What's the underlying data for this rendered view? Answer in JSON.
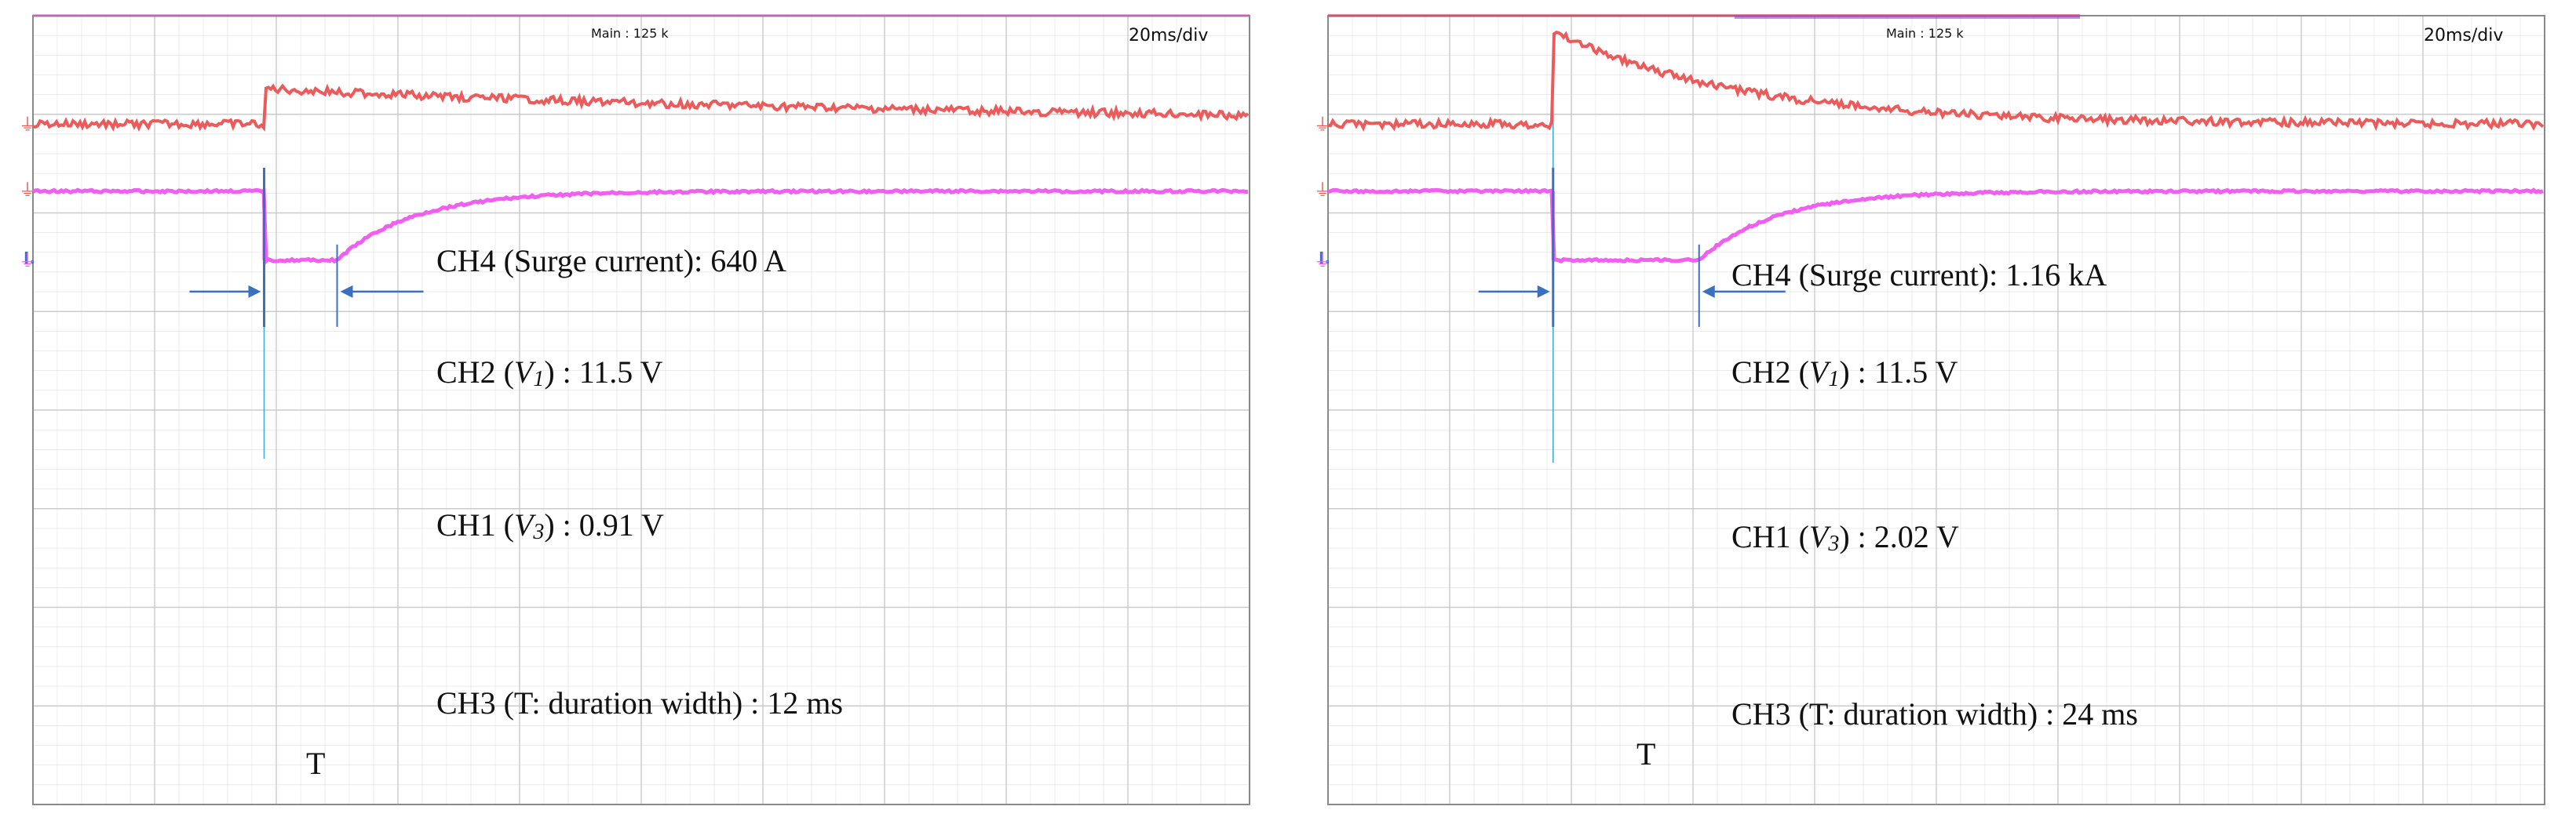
{
  "colors": {
    "ch1": "#ec5b5b",
    "ch2": "#9a43d6",
    "ch3": "#f060f0",
    "ch4": "#3aaee6",
    "marker": "#3a70c0",
    "grid": "#c6c6c6",
    "frame": "#8a8a8a",
    "text": "#111111"
  },
  "icons": {
    "level_marker": "ground-arrow-icon",
    "trigger_marker": "trigger-level-icon"
  },
  "chart_data": [
    {
      "type": "line",
      "panel": "left",
      "header": {
        "main_label": "Main : 125 k",
        "timebase": "20ms/div"
      },
      "trigger_glyph": "I.",
      "x_range_ms": [
        0,
        200
      ],
      "trigger_ms": 38,
      "annotations": {
        "ch4": {
          "prefix": "CH4 (Surge current): ",
          "value": "640 A"
        },
        "ch2": {
          "prefix": "CH2 (",
          "var": "V",
          "sub": "1",
          "mid": ") : ",
          "value": "11.5 V"
        },
        "ch1": {
          "prefix": "CH1 (",
          "var": "V",
          "sub": "3",
          "mid": ") : ",
          "value": "0.91 V"
        },
        "ch3": {
          "prefix": "CH3 (T: duration width) : ",
          "value": "12 ms"
        },
        "t_label": "T"
      },
      "duration_ms": 12,
      "series": [
        {
          "name": "CH4 (Surge current)",
          "color_key": "ch4",
          "baseline_div": 5.58,
          "spike": true
        },
        {
          "name": "CH2 (V1)",
          "color_key": "ch2",
          "baseline_div": 4.38
        },
        {
          "name": "CH1 (V3)",
          "color_key": "ch1",
          "baseline_div": 2.9,
          "step_div": 0.36,
          "tau_ms": 120,
          "final_div": 0.0
        },
        {
          "name": "CH3 (T: duration width)",
          "color_key": "ch3",
          "high_div": 2.22,
          "low_div": 1.52
        }
      ]
    },
    {
      "type": "line",
      "panel": "right",
      "header": {
        "main_label": "Main : 125 k",
        "timebase": "20ms/div"
      },
      "trigger_glyph": "I.",
      "x_range_ms": [
        0,
        200
      ],
      "trigger_ms": 37,
      "annotations": {
        "ch4": {
          "prefix": "CH4 (Surge current): ",
          "value": "1.16 kA"
        },
        "ch2": {
          "prefix": "CH2 (",
          "var": "V",
          "sub": "1",
          "mid": ") : ",
          "value": "11.5 V"
        },
        "ch1": {
          "prefix": "CH1 (",
          "var": "V",
          "sub": "3",
          "mid": ") : ",
          "value": "2.02 V"
        },
        "ch3": {
          "prefix": "CH3 (T: duration width) : ",
          "value": "24 ms"
        },
        "t_label": "T"
      },
      "duration_ms": 24,
      "series": [
        {
          "name": "CH4 (Surge current)",
          "color_key": "ch4",
          "baseline_div": 5.58,
          "spike": true
        },
        {
          "name": "CH2 (V1)",
          "color_key": "ch2",
          "baseline_div": 4.38
        },
        {
          "name": "CH1 (V3)",
          "color_key": "ch1",
          "baseline_div": 2.9,
          "step_div": 0.96,
          "tau_ms": 30,
          "final_div": 0.0
        },
        {
          "name": "CH3 (T: duration width)",
          "color_key": "ch3",
          "high_div": 2.22,
          "low_div": 1.52
        }
      ]
    }
  ]
}
